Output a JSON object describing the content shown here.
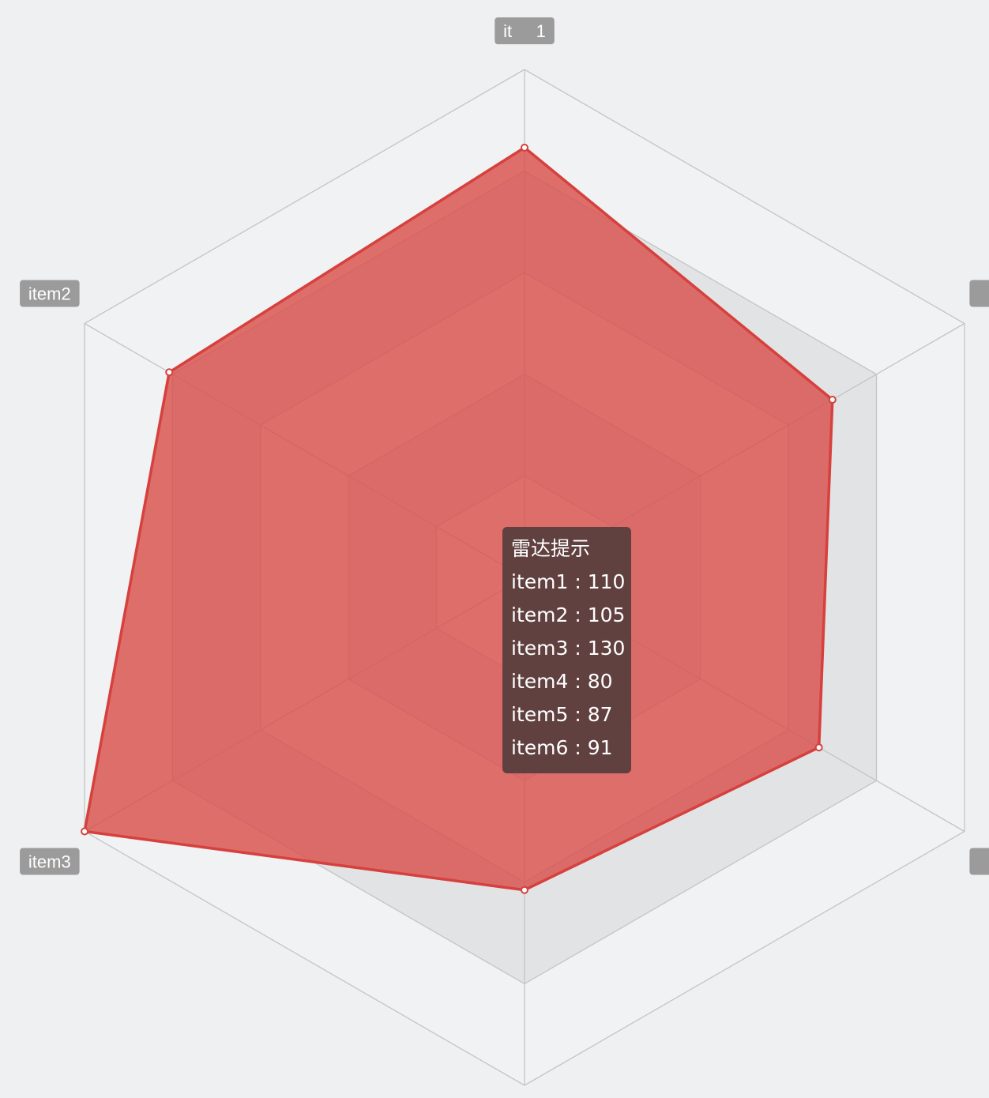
{
  "chart_data": {
    "type": "radar",
    "indicators": [
      {
        "name": "item1",
        "max": 130
      },
      {
        "name": "item2",
        "max": 130
      },
      {
        "name": "item3",
        "max": 130
      },
      {
        "name": "",
        "max": 130
      },
      {
        "name": "",
        "max": 130
      },
      {
        "name": "",
        "max": 130
      }
    ],
    "values": [
      110,
      105,
      130,
      80,
      87,
      91
    ],
    "split_number": 5,
    "colors": {
      "series_fill": "#d9504c",
      "series_line": "#d6403d",
      "split_area_a": "#f1f2f4",
      "split_area_b": "#e2e3e5",
      "split_line": "#c3c4c6",
      "label_bg": "#9b9b9b"
    },
    "tooltip": {
      "title": "雷达提示",
      "rows": [
        {
          "name": "item1",
          "separator": " : ",
          "value": "110"
        },
        {
          "name": "item2",
          "separator": " : ",
          "value": "105"
        },
        {
          "name": "item3",
          "separator": " : ",
          "value": "130"
        },
        {
          "name": "item4",
          "separator": " : ",
          "value": "80"
        },
        {
          "name": "item5",
          "separator": " : ",
          "value": "87"
        },
        {
          "name": "item6",
          "separator": " : ",
          "value": "91"
        }
      ]
    }
  }
}
